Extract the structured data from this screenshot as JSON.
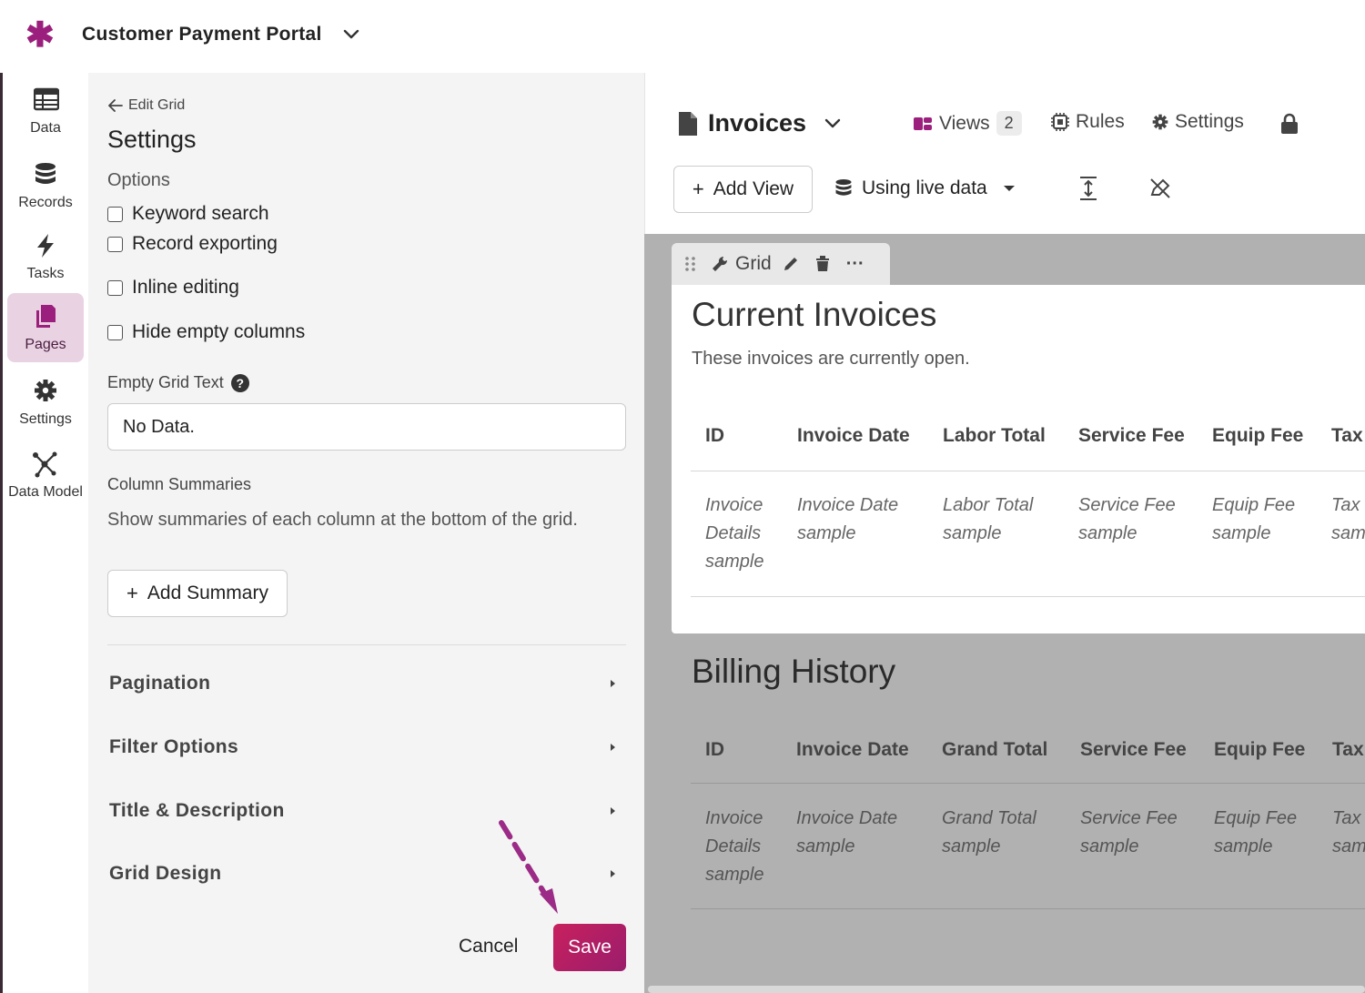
{
  "app": {
    "title": "Customer Payment Portal"
  },
  "nav": {
    "items": [
      {
        "label": "Data",
        "icon": "table-icon"
      },
      {
        "label": "Records",
        "icon": "database-icon"
      },
      {
        "label": "Tasks",
        "icon": "lightning-icon"
      },
      {
        "label": "Pages",
        "icon": "pages-icon",
        "active": true
      },
      {
        "label": "Settings",
        "icon": "gear-icon"
      },
      {
        "label": "Data Model",
        "icon": "data-model-icon"
      }
    ]
  },
  "panel": {
    "back_label": "Edit Grid",
    "title": "Settings",
    "options_label": "Options",
    "options": [
      "Keyword search",
      "Record exporting",
      "Inline editing",
      "Hide empty columns"
    ],
    "empty_text_label": "Empty Grid Text",
    "empty_text_value": "No Data.",
    "summaries_label": "Column Summaries",
    "summaries_help": "Show summaries of each column at the bottom of the grid.",
    "add_summary_label": "Add Summary",
    "sections": [
      "Pagination",
      "Filter Options",
      "Title & Description",
      "Grid Design"
    ],
    "cancel_label": "Cancel",
    "save_label": "Save"
  },
  "canvas_header": {
    "title": "Invoices",
    "views_label": "Views",
    "views_count": "2",
    "rules_label": "Rules",
    "settings_label": "Settings",
    "add_view_label": "Add View",
    "live_data_label": "Using live data"
  },
  "grid_toolbar": {
    "label": "Grid"
  },
  "current_invoices": {
    "title": "Current Invoices",
    "description": "These invoices are currently open.",
    "columns": [
      "ID",
      "Invoice Date",
      "Labor Total",
      "Service Fee",
      "Equip Fee",
      "Tax"
    ],
    "cells": [
      [
        "Invoice",
        "Details",
        "sample"
      ],
      [
        "Invoice Date",
        "sample"
      ],
      [
        "Labor Total",
        "sample"
      ],
      [
        "Service Fee",
        "sample"
      ],
      [
        "Equip Fee",
        "sample"
      ],
      [
        "Tax",
        "sam"
      ]
    ]
  },
  "billing_history": {
    "title": "Billing History",
    "columns": [
      "ID",
      "Invoice Date",
      "Grand Total",
      "Service Fee",
      "Equip Fee",
      "Tax"
    ],
    "cells": [
      [
        "Invoice",
        "Details",
        "sample"
      ],
      [
        "Invoice Date",
        "sample"
      ],
      [
        "Grand Total",
        "sample"
      ],
      [
        "Service Fee",
        "sample"
      ],
      [
        "Equip Fee",
        "sample"
      ],
      [
        "Tax",
        "sam"
      ]
    ]
  },
  "colors": {
    "brand": "#9b1f7c",
    "save": "#b41f66",
    "active_nav": "#e9d3e3",
    "canvas": "#b1b1b1"
  }
}
